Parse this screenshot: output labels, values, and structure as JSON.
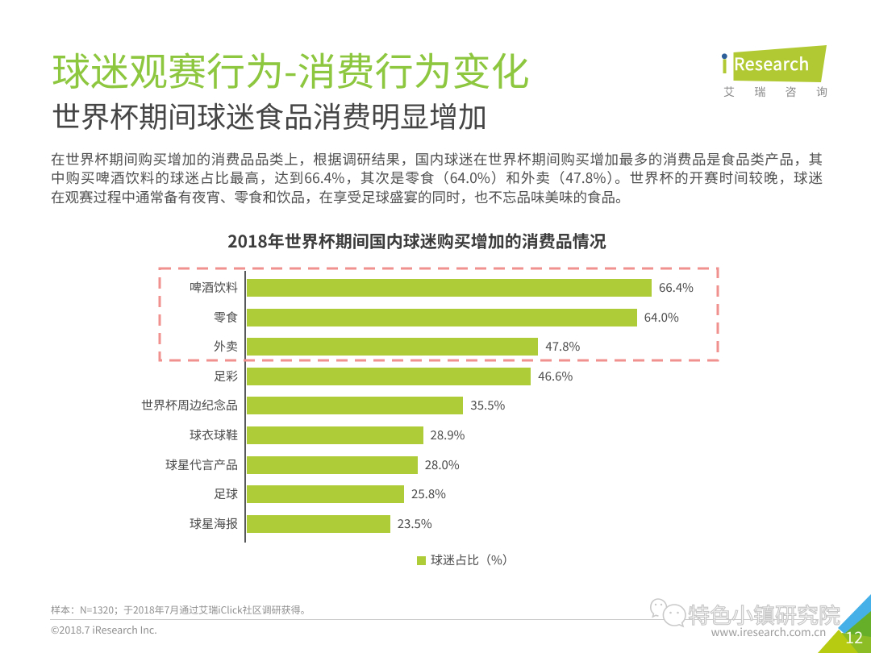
{
  "header": {
    "title": "球迷观赛行为-消费行为变化",
    "subtitle": "世界杯期间球迷食品消费明显增加"
  },
  "logo": {
    "brand": "Research",
    "brand_prefix": "i",
    "cn_chars": [
      "艾",
      "瑞",
      "咨",
      "询"
    ],
    "green": "#B1C932",
    "dot_blue": "#2D5F9B"
  },
  "paragraph": {
    "lines": [
      "在世界杯期间购买增加的消费品品类上，根据调研结果，国内球迷在世界杯期间购买增加最多的消费品是食品类产品，其",
      "中购买啤酒饮料的球迷占比最高，达到66.4%，其次是零食（64.0%）和外卖（47.8%）。世界杯的开赛时间较晚，球迷",
      "在观赛过程中通常备有夜宵、零食和饮品，在享受足球盛宴的同时，也不忘品味美味的食品。"
    ]
  },
  "chart_data": {
    "type": "bar",
    "orientation": "horizontal",
    "title": "2018年世界杯期间国内球迷购买增加的消费品情况",
    "categories": [
      "啤酒饮料",
      "零食",
      "外卖",
      "足彩",
      "世界杯周边纪念品",
      "球衣球鞋",
      "球星代言产品",
      "足球",
      "球星海报"
    ],
    "values": [
      66.4,
      64.0,
      47.8,
      46.6,
      35.5,
      28.9,
      28.0,
      25.8,
      23.5
    ],
    "value_labels": [
      "66.4%",
      "64.0%",
      "47.8%",
      "46.6%",
      "35.5%",
      "28.9%",
      "28.0%",
      "25.8%",
      "23.5%"
    ],
    "unit": "%",
    "xlim": [
      0,
      100
    ],
    "legend": "球迷占比（%）",
    "legend_position": "bottom",
    "bar_color": "#AECB38",
    "highlight_box_rows": [
      0,
      1,
      2
    ],
    "highlight_box_color": "#F0908F",
    "grid": false
  },
  "footer": {
    "note": "样本：N=1320；于2018年7月通过艾瑞iClick社区调研获得。",
    "copyright": "©2018.7 iResearch Inc.",
    "watermark_text": "特色小镇研究院",
    "watermark_url": "www.iresearch.com.cn",
    "page_number": "12"
  }
}
